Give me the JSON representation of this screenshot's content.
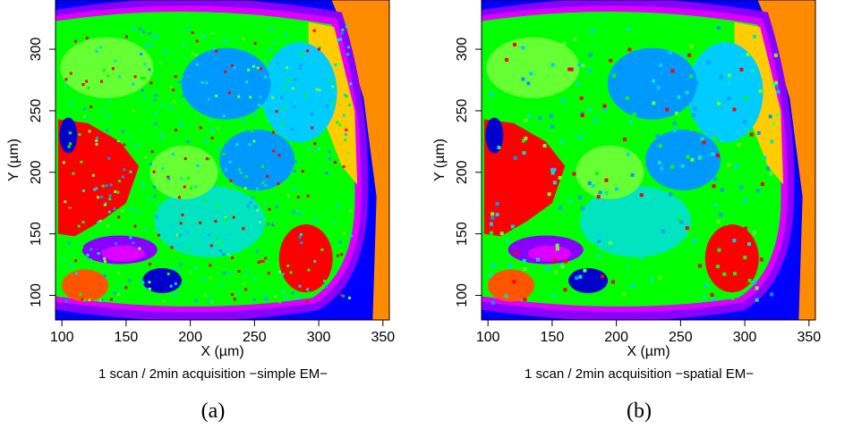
{
  "chart_data": [
    {
      "type": "heatmap",
      "xlabel": "X (µm)",
      "ylabel": "Y (µm)",
      "x_ticks": [
        100,
        150,
        200,
        250,
        300,
        350
      ],
      "y_ticks": [
        100,
        150,
        200,
        250,
        300
      ],
      "xlim": [
        95,
        355
      ],
      "ylim": [
        80,
        340
      ],
      "caption": "1 scan / 2min acquisition −simple EM−",
      "panel_label": "(a)",
      "colors": {
        "background": "#0000ff",
        "orange": "#ff8c00",
        "yellow": "#ffcc00",
        "light_blue": "#00ccff",
        "sky_blue": "#0099ff",
        "green": "#00ff00",
        "light_green": "#66ff33",
        "aqua": "#00e5c0",
        "red": "#ff0000",
        "dark_orange": "#ff5500",
        "purple": "#8800ff",
        "magenta": "#dd00ff",
        "deep_blue": "#0000cc"
      }
    },
    {
      "type": "heatmap",
      "xlabel": "X (µm)",
      "ylabel": "Y (µm)",
      "x_ticks": [
        100,
        150,
        200,
        250,
        300,
        350
      ],
      "y_ticks": [
        100,
        150,
        200,
        250,
        300
      ],
      "xlim": [
        95,
        355
      ],
      "ylim": [
        80,
        340
      ],
      "caption": "1 scan / 2min acquisition −spatial EM−",
      "panel_label": "(b)",
      "colors": {
        "background": "#0000ff",
        "orange": "#ff8c00",
        "yellow": "#ffcc00",
        "light_blue": "#00ccff",
        "sky_blue": "#0099ff",
        "green": "#00ff00",
        "light_green": "#66ff33",
        "aqua": "#00e5c0",
        "red": "#ff0000",
        "dark_orange": "#ff5500",
        "purple": "#8800ff",
        "magenta": "#dd00ff",
        "deep_blue": "#0000cc"
      }
    }
  ]
}
